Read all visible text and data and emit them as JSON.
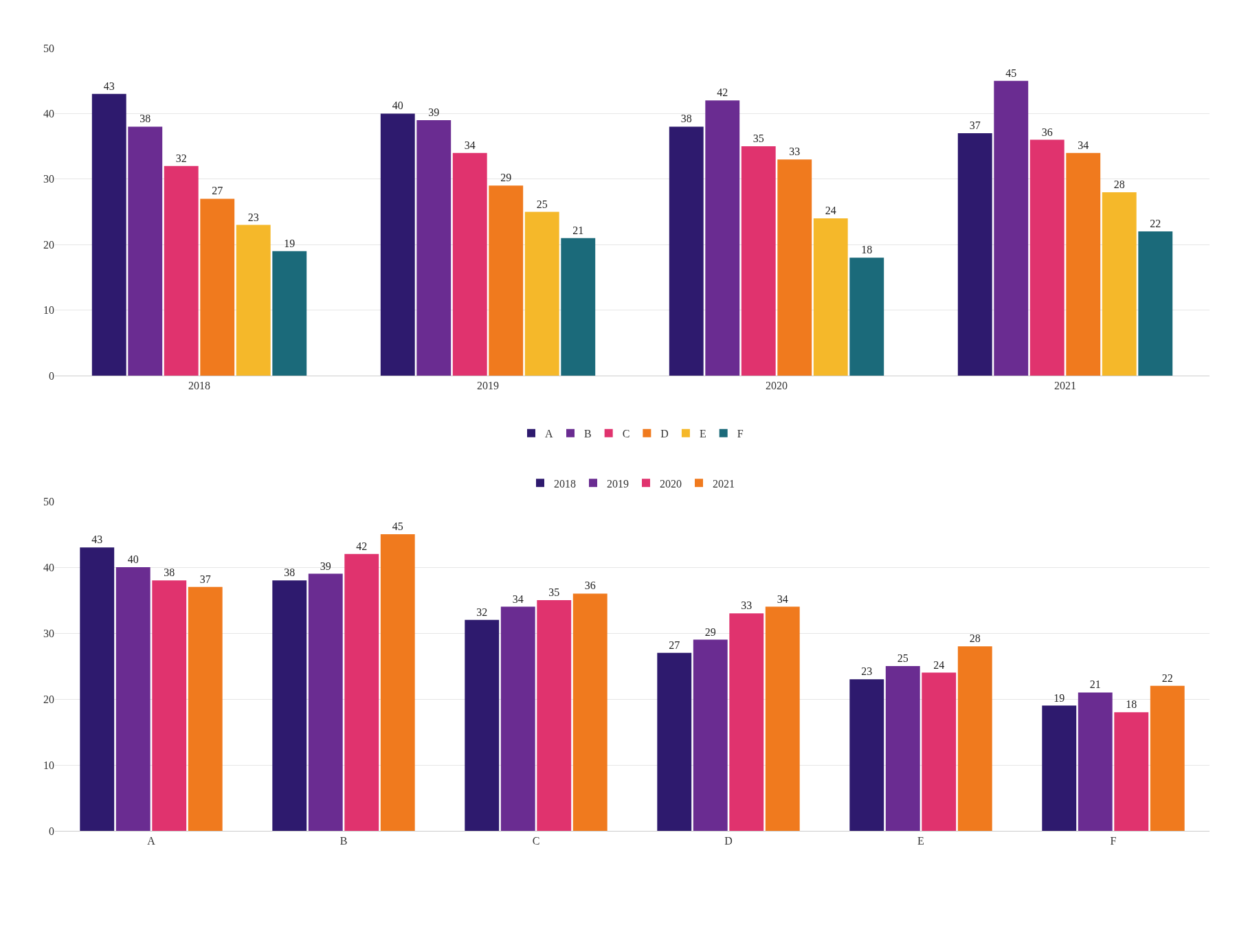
{
  "chart_data": [
    {
      "type": "bar",
      "categories": [
        "2018",
        "2019",
        "2020",
        "2021"
      ],
      "series": [
        {
          "name": "A",
          "color": "#2e1a6e",
          "values": [
            43,
            40,
            38,
            37
          ]
        },
        {
          "name": "B",
          "color": "#6a2c91",
          "values": [
            38,
            39,
            42,
            45
          ]
        },
        {
          "name": "C",
          "color": "#e0336e",
          "values": [
            32,
            34,
            35,
            36
          ]
        },
        {
          "name": "D",
          "color": "#f07a1e",
          "values": [
            27,
            29,
            33,
            34
          ]
        },
        {
          "name": "E",
          "color": "#f5b82a",
          "values": [
            23,
            25,
            24,
            28
          ]
        },
        {
          "name": "F",
          "color": "#1b6a7a",
          "values": [
            19,
            21,
            18,
            22
          ]
        }
      ],
      "ylim": [
        0,
        50
      ],
      "yticks": [
        0,
        10,
        20,
        30,
        40,
        50
      ],
      "grid": "y",
      "legend": "bottom",
      "data_labels": true
    },
    {
      "type": "bar",
      "categories": [
        "A",
        "B",
        "C",
        "D",
        "E",
        "F"
      ],
      "series": [
        {
          "name": "2018",
          "color": "#2e1a6e",
          "values": [
            43,
            38,
            32,
            27,
            23,
            19
          ]
        },
        {
          "name": "2019",
          "color": "#6a2c91",
          "values": [
            40,
            39,
            34,
            29,
            25,
            21
          ]
        },
        {
          "name": "2020",
          "color": "#e0336e",
          "values": [
            38,
            42,
            35,
            33,
            24,
            18
          ]
        },
        {
          "name": "2021",
          "color": "#f07a1e",
          "values": [
            37,
            45,
            36,
            34,
            28,
            22
          ]
        }
      ],
      "ylim": [
        0,
        50
      ],
      "yticks": [
        0,
        10,
        20,
        30,
        40,
        50
      ],
      "grid": "y",
      "legend": "top",
      "data_labels": true
    }
  ]
}
